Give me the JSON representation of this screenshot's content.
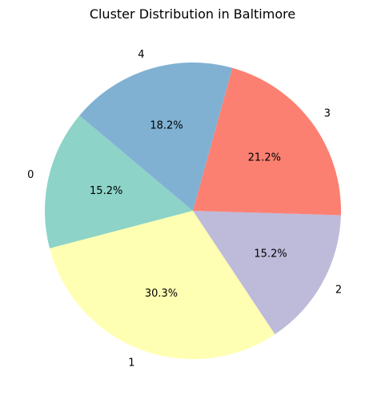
{
  "chart_data": {
    "type": "pie",
    "title": "Cluster Distribution in Baltimore",
    "categories": [
      "0",
      "1",
      "2",
      "3",
      "4"
    ],
    "values": [
      15.2,
      30.3,
      15.2,
      21.2,
      18.2
    ],
    "value_labels": [
      "15.2%",
      "30.3%",
      "15.2%",
      "21.2%",
      "18.2%"
    ],
    "colors": [
      "#8dd3c7",
      "#ffffb3",
      "#bebada",
      "#fb8072",
      "#80b1d3"
    ],
    "start_angle_deg": 140,
    "direction": "counterclockwise",
    "legend": "none"
  }
}
